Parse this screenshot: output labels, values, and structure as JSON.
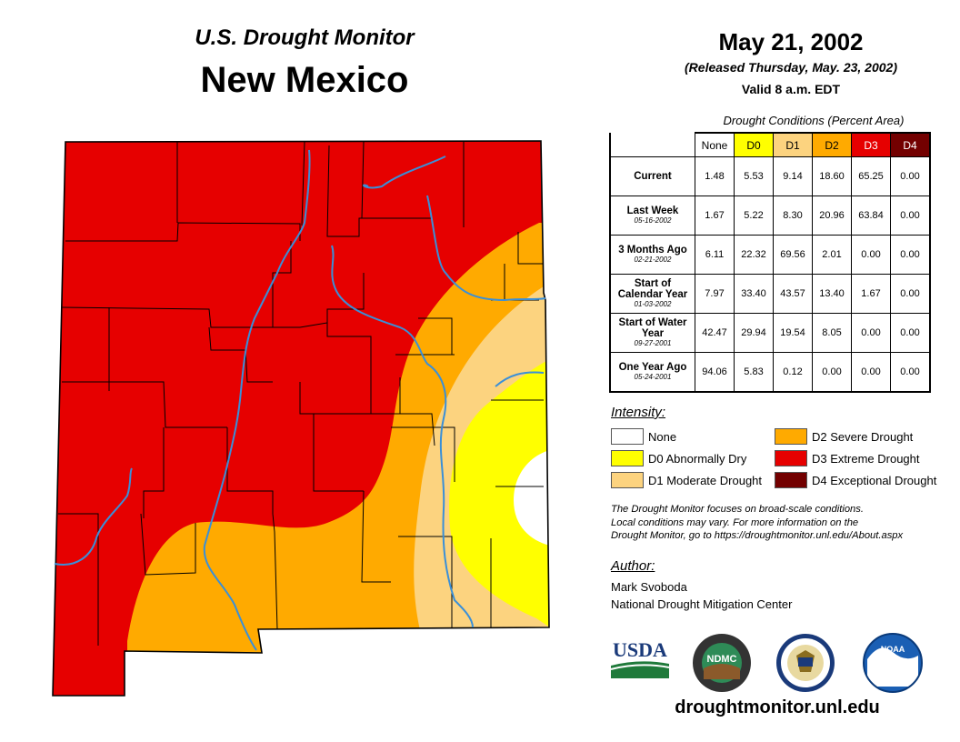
{
  "header": {
    "subtitle": "U.S. Drought Monitor",
    "state": "New Mexico",
    "map_date": "May 21, 2002",
    "released": "(Released Thursday, May. 23, 2002)",
    "valid": "Valid 8 a.m. EDT"
  },
  "table": {
    "caption": "Drought Conditions (Percent Area)",
    "columns": [
      "None",
      "D0",
      "D1",
      "D2",
      "D3",
      "D4"
    ],
    "column_colors": [
      "#ffffff",
      "#ffff00",
      "#fcd37f",
      "#ffaa00",
      "#e60000",
      "#730000"
    ],
    "rows": [
      {
        "label": "Current",
        "date": "",
        "values": [
          "1.48",
          "5.53",
          "9.14",
          "18.60",
          "65.25",
          "0.00"
        ]
      },
      {
        "label": "Last Week",
        "date": "05-16-2002",
        "values": [
          "1.67",
          "5.22",
          "8.30",
          "20.96",
          "63.84",
          "0.00"
        ]
      },
      {
        "label": "3 Months Ago",
        "date": "02-21-2002",
        "values": [
          "6.11",
          "22.32",
          "69.56",
          "2.01",
          "0.00",
          "0.00"
        ]
      },
      {
        "label": "Start of Calendar Year",
        "date": "01-03-2002",
        "values": [
          "7.97",
          "33.40",
          "43.57",
          "13.40",
          "1.67",
          "0.00"
        ]
      },
      {
        "label": "Start of Water Year",
        "date": "09-27-2001",
        "values": [
          "42.47",
          "29.94",
          "19.54",
          "8.05",
          "0.00",
          "0.00"
        ]
      },
      {
        "label": "One Year Ago",
        "date": "05-24-2001",
        "values": [
          "94.06",
          "5.83",
          "0.12",
          "0.00",
          "0.00",
          "0.00"
        ]
      }
    ]
  },
  "legend": {
    "title": "Intensity:",
    "items": [
      {
        "label": "None",
        "color": "#ffffff"
      },
      {
        "label": "D0 Abnormally Dry",
        "color": "#ffff00"
      },
      {
        "label": "D1 Moderate Drought",
        "color": "#fcd37f"
      },
      {
        "label": "D2 Severe Drought",
        "color": "#ffaa00"
      },
      {
        "label": "D3 Extreme Drought",
        "color": "#e60000"
      },
      {
        "label": "D4 Exceptional Drought",
        "color": "#730000"
      }
    ]
  },
  "note": {
    "line1": "The Drought Monitor focuses on broad-scale conditions.",
    "line2": "Local conditions may vary. For more information on the",
    "line3": "Drought Monitor, go to https://droughtmonitor.unl.edu/About.aspx"
  },
  "author": {
    "heading": "Author:",
    "name": "Mark Svoboda",
    "org": "National Drought Mitigation Center"
  },
  "logos": {
    "usda": "USDA",
    "ndmc": "NDMC",
    "noaa": "NOAA"
  },
  "website": "droughtmonitor.unl.edu",
  "colors": {
    "d0": "#ffff00",
    "d1": "#fcd37f",
    "d2": "#ffaa00",
    "d3": "#e60000",
    "d4": "#730000",
    "river": "#3a8fd8"
  }
}
